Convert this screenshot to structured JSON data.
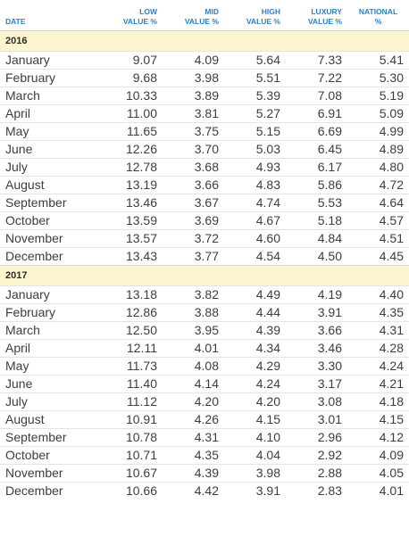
{
  "headers": {
    "date": "DATE",
    "low": [
      "LOW",
      "VALUE %"
    ],
    "mid": [
      "MID",
      "VALUE %"
    ],
    "high": [
      "HIGH",
      "VALUE %"
    ],
    "luxury": [
      "LUXURY",
      "VALUE %"
    ],
    "national": [
      "NATIONAL",
      "%"
    ]
  },
  "groups": [
    {
      "year": "2016",
      "rows": [
        [
          "January",
          "9.07",
          "4.09",
          "5.64",
          "7.33",
          "5.41"
        ],
        [
          "February",
          "9.68",
          "3.98",
          "5.51",
          "7.22",
          "5.30"
        ],
        [
          "March",
          "10.33",
          "3.89",
          "5.39",
          "7.08",
          "5.19"
        ],
        [
          "April",
          "11.00",
          "3.81",
          "5.27",
          "6.91",
          "5.09"
        ],
        [
          "May",
          "11.65",
          "3.75",
          "5.15",
          "6.69",
          "4.99"
        ],
        [
          "June",
          "12.26",
          "3.70",
          "5.03",
          "6.45",
          "4.89"
        ],
        [
          "July",
          "12.78",
          "3.68",
          "4.93",
          "6.17",
          "4.80"
        ],
        [
          "August",
          "13.19",
          "3.66",
          "4.83",
          "5.86",
          "4.72"
        ],
        [
          "September",
          "13.46",
          "3.67",
          "4.74",
          "5.53",
          "4.64"
        ],
        [
          "October",
          "13.59",
          "3.69",
          "4.67",
          "5.18",
          "4.57"
        ],
        [
          "November",
          "13.57",
          "3.72",
          "4.60",
          "4.84",
          "4.51"
        ],
        [
          "December",
          "13.43",
          "3.77",
          "4.54",
          "4.50",
          "4.45"
        ]
      ]
    },
    {
      "year": "2017",
      "rows": [
        [
          "January",
          "13.18",
          "3.82",
          "4.49",
          "4.19",
          "4.40"
        ],
        [
          "February",
          "12.86",
          "3.88",
          "4.44",
          "3.91",
          "4.35"
        ],
        [
          "March",
          "12.50",
          "3.95",
          "4.39",
          "3.66",
          "4.31"
        ],
        [
          "April",
          "12.11",
          "4.01",
          "4.34",
          "3.46",
          "4.28"
        ],
        [
          "May",
          "11.73",
          "4.08",
          "4.29",
          "3.30",
          "4.24"
        ],
        [
          "June",
          "11.40",
          "4.14",
          "4.24",
          "3.17",
          "4.21"
        ],
        [
          "July",
          "11.12",
          "4.20",
          "4.20",
          "3.08",
          "4.18"
        ],
        [
          "August",
          "10.91",
          "4.26",
          "4.15",
          "3.01",
          "4.15"
        ],
        [
          "September",
          "10.78",
          "4.31",
          "4.10",
          "2.96",
          "4.12"
        ],
        [
          "October",
          "10.71",
          "4.35",
          "4.04",
          "2.92",
          "4.09"
        ],
        [
          "November",
          "10.67",
          "4.39",
          "3.98",
          "2.88",
          "4.05"
        ],
        [
          "December",
          "10.66",
          "4.42",
          "3.91",
          "2.83",
          "4.01"
        ]
      ]
    }
  ],
  "colors": {
    "header_text": "#2c80c2",
    "year_row_bg": "#fbf4cf"
  }
}
